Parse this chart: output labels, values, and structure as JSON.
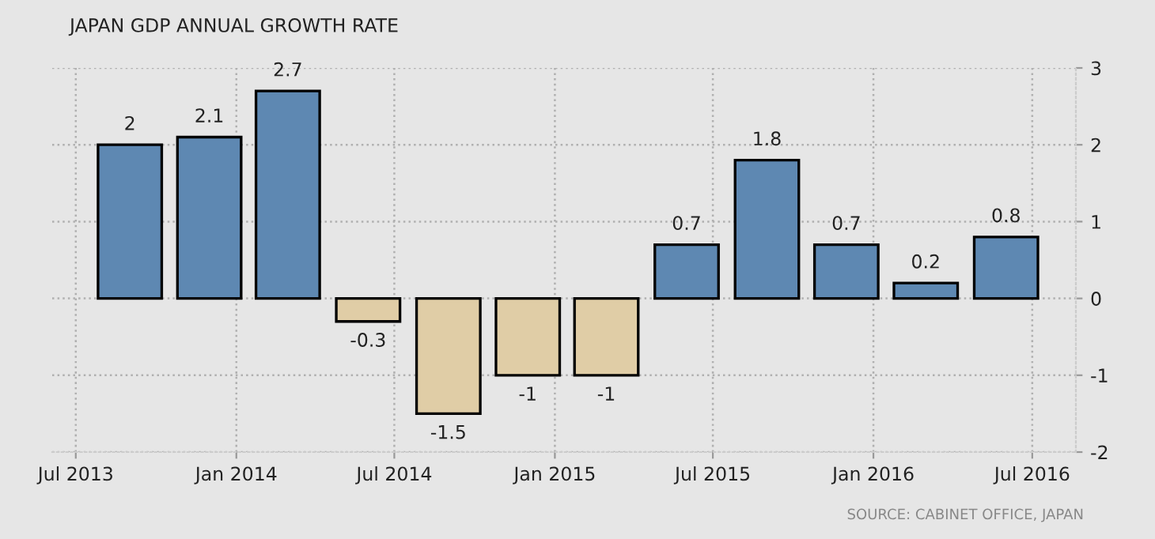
{
  "chart_data": {
    "type": "bar",
    "title": "JAPAN GDP ANNUAL GROWTH RATE",
    "x": [
      "2013-09",
      "2013-12",
      "2014-03",
      "2014-06",
      "2014-09",
      "2014-12",
      "2015-03",
      "2015-06",
      "2015-09",
      "2015-12",
      "2016-03",
      "2016-06"
    ],
    "values": [
      2,
      2.1,
      2.7,
      -0.3,
      -1.5,
      -1,
      -1,
      0.7,
      1.8,
      0.7,
      0.2,
      0.8
    ],
    "colors": [
      "#5e88b2",
      "#5e88b2",
      "#5e88b2",
      "#e0cda6",
      "#e0cda6",
      "#e0cda6",
      "#e0cda6",
      "#5e88b2",
      "#5e88b2",
      "#5e88b2",
      "#5e88b2",
      "#5e88b2"
    ],
    "xlim": [
      "2013-06-04",
      "2016-08-20"
    ],
    "xticks": [
      {
        "value": "2013-07-01",
        "label": "Jul 2013"
      },
      {
        "value": "2014-01-01",
        "label": "Jan 2014"
      },
      {
        "value": "2014-07-01",
        "label": "Jul 2014"
      },
      {
        "value": "2015-01-01",
        "label": "Jan 2015"
      },
      {
        "value": "2015-07-01",
        "label": "Jul 2015"
      },
      {
        "value": "2016-01-01",
        "label": "Jan 2016"
      },
      {
        "value": "2016-07-01",
        "label": "Jul 2016"
      }
    ],
    "ylim": [
      -2,
      3
    ],
    "yticks": [
      -2,
      -1,
      0,
      1,
      2,
      3
    ],
    "grid": true,
    "data_labels": true,
    "annotations": [
      "SOURCE: CABINET OFFICE, JAPAN"
    ]
  }
}
